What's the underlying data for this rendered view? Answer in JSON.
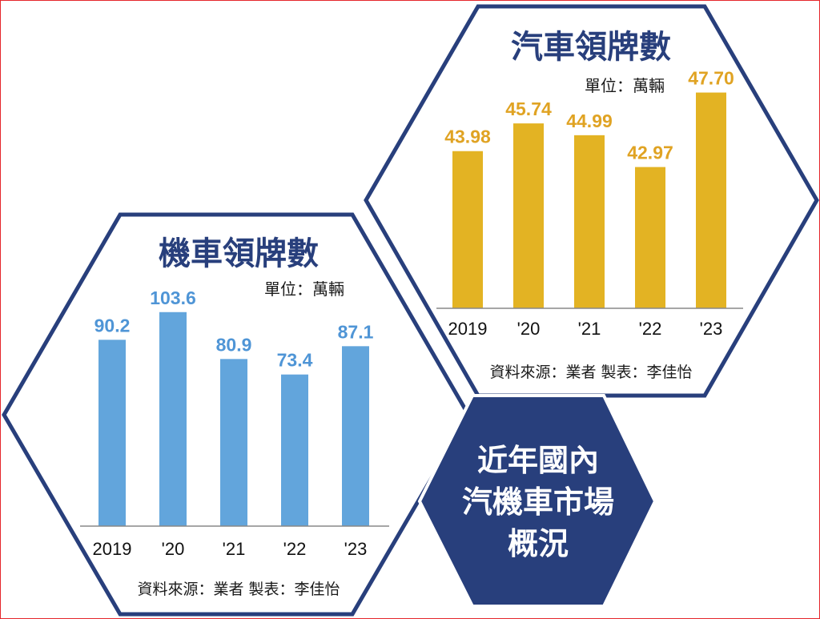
{
  "colors": {
    "frame": "#e5262b",
    "navy": "#283f7c",
    "car_bar": "#e3b323",
    "car_label": "#e0a323",
    "moto_bar": "#62a5dc",
    "moto_label": "#4f95d6"
  },
  "center_label": [
    "近年國內",
    "汽機車市場",
    "概況"
  ],
  "chart_data": [
    {
      "type": "bar",
      "title": "汽車領牌數",
      "unit": "單位：萬輛",
      "categories": [
        "2019",
        "'20",
        "'21",
        "'22",
        "'23"
      ],
      "values": [
        43.98,
        45.74,
        44.99,
        42.97,
        47.7
      ],
      "value_labels": [
        "43.98",
        "45.74",
        "44.99",
        "42.97",
        "47.70"
      ],
      "ylim": [
        34,
        49
      ],
      "source": "資料來源：業者  製表：李佳怡"
    },
    {
      "type": "bar",
      "title": "機車領牌數",
      "unit": "單位：萬輛",
      "categories": [
        "2019",
        "'20",
        "'21",
        "'22",
        "'23"
      ],
      "values": [
        90.2,
        103.6,
        80.9,
        73.4,
        87.1
      ],
      "value_labels": [
        "90.2",
        "103.6",
        "80.9",
        "73.4",
        "87.1"
      ],
      "ylim": [
        0,
        107
      ],
      "source": "資料來源：業者   製表：李佳怡"
    }
  ]
}
